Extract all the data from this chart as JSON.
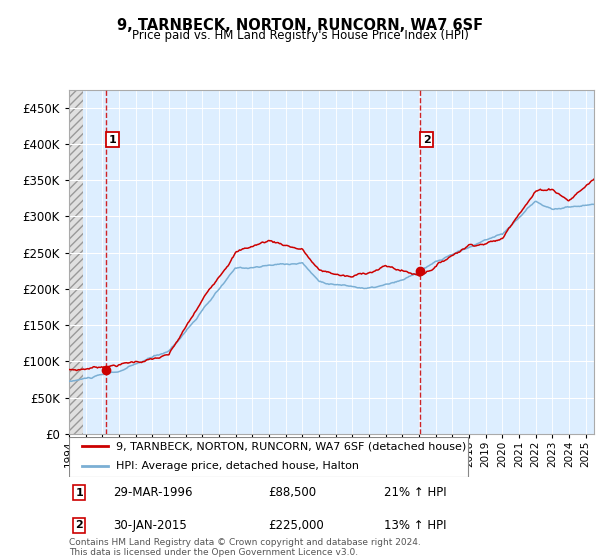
{
  "title": "9, TARNBECK, NORTON, RUNCORN, WA7 6SF",
  "subtitle": "Price paid vs. HM Land Registry's House Price Index (HPI)",
  "legend_entry1": "9, TARNBECK, NORTON, RUNCORN, WA7 6SF (detached house)",
  "legend_entry2": "HPI: Average price, detached house, Halton",
  "annotation1_label": "1",
  "annotation1_date": "29-MAR-1996",
  "annotation1_price": "£88,500",
  "annotation1_hpi": "21% ↑ HPI",
  "annotation2_label": "2",
  "annotation2_date": "30-JAN-2015",
  "annotation2_price": "£225,000",
  "annotation2_hpi": "13% ↑ HPI",
  "footer": "Contains HM Land Registry data © Crown copyright and database right 2024.\nThis data is licensed under the Open Government Licence v3.0.",
  "red_line_color": "#cc0000",
  "blue_line_color": "#7bafd4",
  "annotation_box_color": "#cc0000",
  "bg_plot_color": "#ddeeff",
  "grid_color": "#ffffff",
  "ylim": [
    0,
    475000
  ],
  "yticks": [
    0,
    50000,
    100000,
    150000,
    200000,
    250000,
    300000,
    350000,
    400000,
    450000
  ],
  "sale1_x": 1996.24,
  "sale1_y": 88500,
  "sale2_x": 2015.08,
  "sale2_y": 225000,
  "xmin": 1994.0,
  "xmax": 2025.5
}
